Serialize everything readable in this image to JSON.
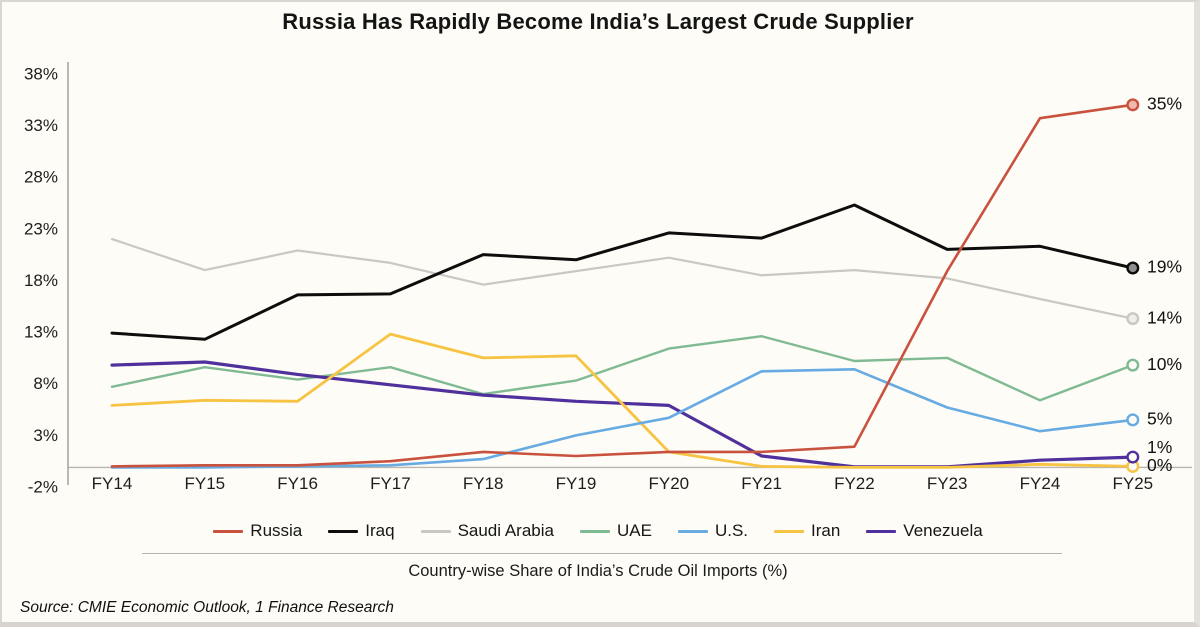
{
  "title": "Russia Has Rapidly Become India’s Largest Crude Supplier",
  "footer": {
    "caption": "Country-wise Share of India’s Crude Oil Imports (%)",
    "source": "Source: CMIE Economic Outlook, 1 Finance Research"
  },
  "colors": {
    "background": "#fdfcf6",
    "axis_line": "#a3a19b",
    "baseline": "#b7b5ae"
  },
  "chart_data": {
    "type": "line",
    "title": "Russia Has Rapidly Become India’s Largest Crude Supplier",
    "xlabel": "Country-wise Share of India’s Crude Oil Imports (%)",
    "ylabel": "",
    "grid": false,
    "legend_position": "bottom",
    "ylim": [
      -2,
      38
    ],
    "y_axis": {
      "tick_values": [
        38,
        33,
        28,
        23,
        18,
        13,
        8,
        3,
        -2
      ],
      "tick_labels": [
        "38%",
        "33%",
        "28%",
        "23%",
        "18%",
        "13%",
        "8%",
        "3%",
        "-2%"
      ]
    },
    "categories": [
      "FY14",
      "FY15",
      "FY16",
      "FY17",
      "FY18",
      "FY19",
      "FY20",
      "FY21",
      "FY22",
      "FY23",
      "FY24",
      "FY25"
    ],
    "series": [
      {
        "name": "Russia",
        "color": "#c9523e",
        "marker_fill": "#f0b9ab",
        "end_label": "35%",
        "values": [
          0.1,
          0.2,
          0.2,
          0.6,
          1.5,
          1.1,
          1.5,
          1.5,
          2.0,
          19.0,
          33.8,
          35.1
        ]
      },
      {
        "name": "Iraq",
        "color": "#0d0d0d",
        "marker_fill": "#8f8f8f",
        "end_label": "19%",
        "values": [
          13.0,
          12.4,
          16.7,
          16.8,
          20.6,
          20.1,
          22.7,
          22.2,
          25.4,
          21.1,
          21.4,
          19.3
        ]
      },
      {
        "name": "Saudi Arabia",
        "color": "#c9c8c3",
        "marker_fill": "#efeee9",
        "end_label": "14%",
        "values": [
          22.1,
          19.1,
          21.0,
          19.8,
          17.7,
          19.0,
          20.3,
          18.6,
          19.1,
          18.3,
          16.3,
          14.4
        ]
      },
      {
        "name": "UAE",
        "color": "#7fba93",
        "marker_fill": "#fdfcf6",
        "end_label": "10%",
        "values": [
          7.8,
          9.7,
          8.5,
          9.7,
          7.1,
          8.4,
          11.5,
          12.7,
          10.3,
          10.6,
          6.5,
          9.9
        ]
      },
      {
        "name": "U.S.",
        "color": "#67abe2",
        "marker_fill": "#fdfcf6",
        "end_label": "5%",
        "values": [
          0.0,
          0.0,
          0.1,
          0.2,
          0.8,
          3.1,
          4.8,
          9.3,
          9.5,
          5.8,
          3.5,
          4.6
        ]
      },
      {
        "name": "Iran",
        "color": "#f7c342",
        "marker_fill": "#fdfcf6",
        "end_label": "0%",
        "values": [
          6.0,
          6.5,
          6.4,
          12.9,
          10.6,
          10.8,
          1.5,
          0.1,
          0.0,
          0.0,
          0.3,
          0.1
        ]
      },
      {
        "name": "Venezuela",
        "color": "#50309c",
        "marker_fill": "#fdfcf6",
        "end_label": "1%",
        "values": [
          9.9,
          10.2,
          9.0,
          8.0,
          7.0,
          6.4,
          6.0,
          1.1,
          0.05,
          0.05,
          0.7,
          1.0
        ]
      }
    ]
  }
}
